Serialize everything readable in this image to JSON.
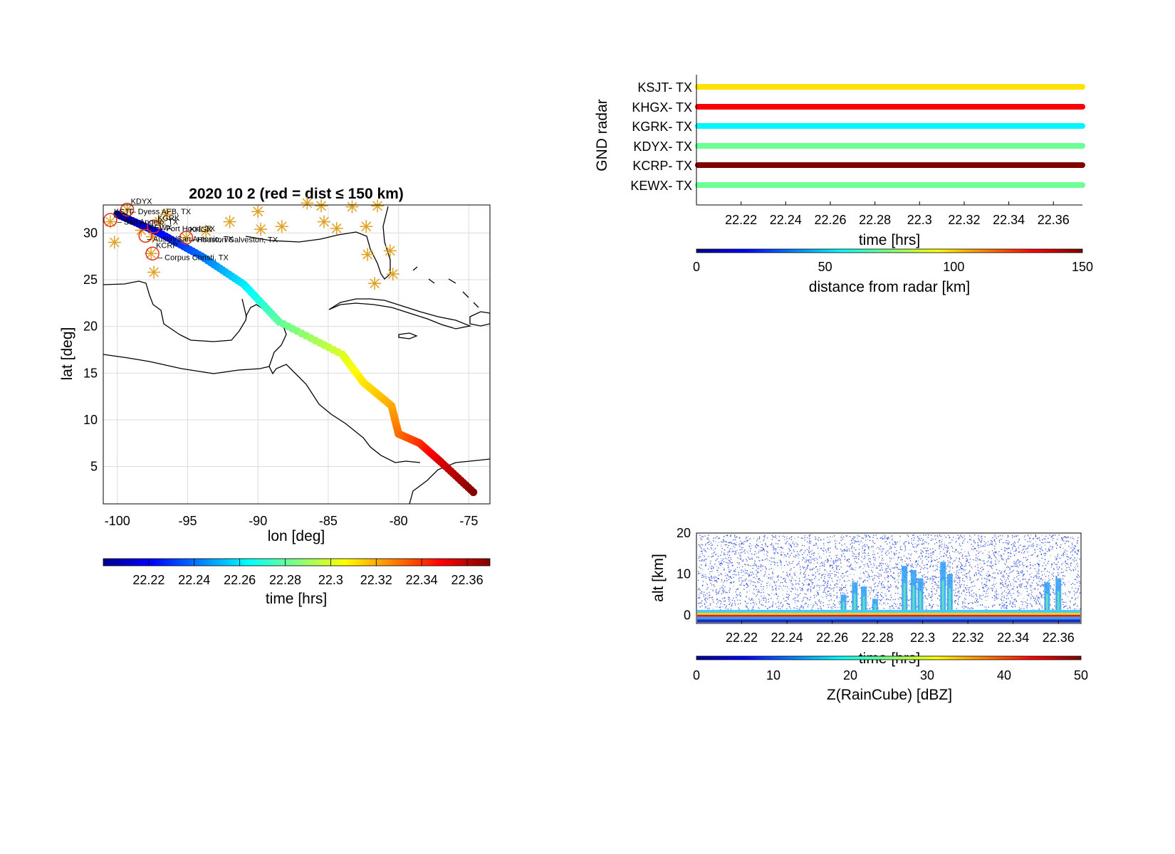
{
  "colors": {
    "nav_star": "#e0a020",
    "near_circle": "#e03020"
  },
  "chart_data": [
    {
      "id": "track-map",
      "type": "scatter",
      "title": "2020    10     2  (red = dist ≤ 150 km)",
      "xlabel": "lon  [deg]",
      "ylabel": "lat  [deg]",
      "xlim": [
        -101,
        -73.5
      ],
      "ylim": [
        1,
        33
      ],
      "xticks": [
        -100,
        -95,
        -90,
        -85,
        -80,
        -75
      ],
      "yticks": [
        5,
        10,
        15,
        20,
        25,
        30
      ],
      "grid": true,
      "colorbar": {
        "label": "time  [hrs]",
        "ticks": [
          "22.22",
          "22.24",
          "22.26",
          "22.28",
          "22.3",
          "22.32",
          "22.34",
          "22.36"
        ],
        "range": [
          22.2,
          22.37
        ]
      },
      "track": {
        "t": [
          22.2,
          22.22,
          22.24,
          22.26,
          22.28,
          22.3,
          22.31,
          22.32,
          22.33,
          22.34,
          22.355,
          22.37
        ],
        "lon": [
          -100.0,
          -97.0,
          -94.0,
          -91.0,
          -88.5,
          -84.0,
          -82.5,
          -80.5,
          -80.0,
          -78.5,
          -77.0,
          -74.5
        ],
        "lat": [
          32.0,
          30.0,
          27.5,
          24.5,
          20.5,
          17.0,
          14.0,
          11.5,
          8.5,
          7.5,
          5.5,
          2.0
        ]
      },
      "nav_stations": [
        {
          "lon": -100.5,
          "lat": 31.2
        },
        {
          "lon": -100.2,
          "lat": 29.0
        },
        {
          "lon": -99.3,
          "lat": 32.5
        },
        {
          "lon": -98.3,
          "lat": 30.3
        },
        {
          "lon": -97.5,
          "lat": 29.6
        },
        {
          "lon": -97.6,
          "lat": 27.8
        },
        {
          "lon": -97.4,
          "lat": 25.8
        },
        {
          "lon": -97.0,
          "lat": 31.2
        },
        {
          "lon": -96.5,
          "lat": 32.0
        },
        {
          "lon": -95.1,
          "lat": 29.5
        },
        {
          "lon": -93.7,
          "lat": 30.2
        },
        {
          "lon": -92.0,
          "lat": 31.2
        },
        {
          "lon": -90.0,
          "lat": 32.3
        },
        {
          "lon": -89.8,
          "lat": 30.4
        },
        {
          "lon": -88.3,
          "lat": 30.7
        },
        {
          "lon": -86.5,
          "lat": 33.2
        },
        {
          "lon": -85.5,
          "lat": 32.9
        },
        {
          "lon": -85.3,
          "lat": 31.2
        },
        {
          "lon": -84.4,
          "lat": 30.5
        },
        {
          "lon": -83.3,
          "lat": 32.8
        },
        {
          "lon": -82.3,
          "lat": 30.7
        },
        {
          "lon": -81.5,
          "lat": 32.9
        },
        {
          "lon": -82.2,
          "lat": 27.7
        },
        {
          "lon": -80.6,
          "lat": 28.1
        },
        {
          "lon": -80.4,
          "lat": 25.6
        },
        {
          "lon": -81.7,
          "lat": 24.6
        }
      ],
      "near_stations": [
        {
          "lon": -99.3,
          "lat": 32.5,
          "label": "KDYX"
        },
        {
          "lon": -100.5,
          "lat": 31.4,
          "label": "KSJT"
        },
        {
          "lon": -97.4,
          "lat": 30.7,
          "label": "KGRK"
        },
        {
          "lon": -98.0,
          "lat": 29.7,
          "label": "KEWX"
        },
        {
          "lon": -95.1,
          "lat": 29.5,
          "label": "KHGX"
        },
        {
          "lon": -97.5,
          "lat": 27.8,
          "label": "KCRP"
        }
      ],
      "station_notes": [
        {
          "lon": -99.0,
          "lat": 32.3,
          "label": "– Dyess AFB, TX"
        },
        {
          "lon": -100.0,
          "lat": 31.2,
          "label": "– San Angelo, TX"
        },
        {
          "lon": -97.0,
          "lat": 30.5,
          "label": "– Fort Hood, TX"
        },
        {
          "lon": -97.9,
          "lat": 29.4,
          "label": "– Austin/San Antonio, TX"
        },
        {
          "lon": -94.8,
          "lat": 29.3,
          "label": "– Houston/Galveston, TX"
        },
        {
          "lon": -97.1,
          "lat": 27.4,
          "label": "– Corpus Christi, TX"
        }
      ]
    },
    {
      "id": "gnd-radar",
      "type": "scatter",
      "ylabel": "GND radar",
      "xlabel": "time [hrs]",
      "xlim": [
        22.2,
        22.373
      ],
      "xticks": [
        "22.22",
        "22.24",
        "22.26",
        "22.28",
        "22.3",
        "22.32",
        "22.34",
        "22.36"
      ],
      "categories": [
        "KSJT-  TX",
        "KHGX-  TX",
        "KGRK-  TX",
        "KDYX-  TX",
        "KCRP-  TX",
        "KEWX-  TX"
      ],
      "series": [
        {
          "name": "KSJT-  TX",
          "distance_km": 98
        },
        {
          "name": "KHGX-  TX",
          "distance_km": 132
        },
        {
          "name": "KGRK-  TX",
          "distance_km": 55
        },
        {
          "name": "KDYX-  TX",
          "distance_km": 72
        },
        {
          "name": "KCRP-  TX",
          "distance_km": 150
        },
        {
          "name": "KEWX-  TX",
          "distance_km": 72
        }
      ],
      "colorbar": {
        "label": "distance from radar [km]",
        "ticks": [
          "0",
          "50",
          "100",
          "150"
        ],
        "range": [
          0,
          150
        ]
      }
    },
    {
      "id": "raincube-curtain",
      "type": "heatmap",
      "xlabel": "time [hrs]",
      "ylabel": "alt [km]",
      "xlim": [
        22.2,
        22.37
      ],
      "ylim": [
        -2,
        20
      ],
      "xticks": [
        "22.22",
        "22.24",
        "22.26",
        "22.28",
        "22.3",
        "22.32",
        "22.34",
        "22.36"
      ],
      "yticks": [
        "0",
        "10",
        "20"
      ],
      "convective_cells": [
        {
          "t": 22.265,
          "top_km": 5
        },
        {
          "t": 22.27,
          "top_km": 8
        },
        {
          "t": 22.274,
          "top_km": 7
        },
        {
          "t": 22.279,
          "top_km": 4
        },
        {
          "t": 22.292,
          "top_km": 12
        },
        {
          "t": 22.296,
          "top_km": 11
        },
        {
          "t": 22.299,
          "top_km": 9
        },
        {
          "t": 22.309,
          "top_km": 13
        },
        {
          "t": 22.312,
          "top_km": 10
        },
        {
          "t": 22.355,
          "top_km": 8
        },
        {
          "t": 22.36,
          "top_km": 9
        }
      ],
      "colorbar": {
        "label": "Z(RainCube) [dBZ]",
        "ticks": [
          "0",
          "10",
          "20",
          "30",
          "40",
          "50"
        ],
        "range": [
          0,
          50
        ]
      }
    }
  ]
}
